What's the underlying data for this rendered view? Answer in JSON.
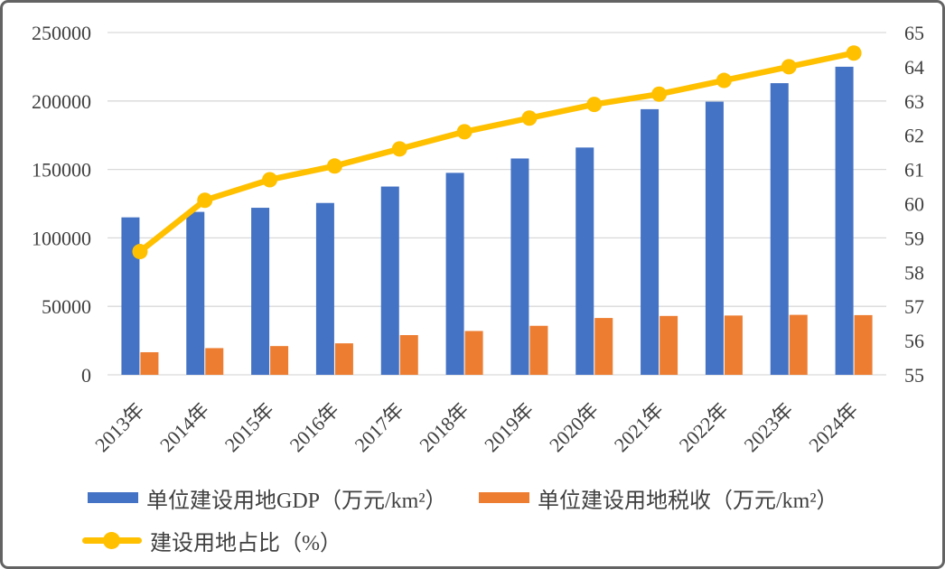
{
  "colors": {
    "bar_gdp": "#4472C4",
    "bar_tax": "#ED7D31",
    "line_ratio": "#FFC000",
    "grid": "#D9D9D9",
    "text": "#404040",
    "frame_border": "#636363",
    "background": "#FFFFFF"
  },
  "chart_data": {
    "type": "combo",
    "title": "",
    "grid": true,
    "legend_position": "bottom",
    "categories": [
      "2013年",
      "2014年",
      "2015年",
      "2016年",
      "2017年",
      "2018年",
      "2019年",
      "2020年",
      "2021年",
      "2022年",
      "2023年",
      "2024年"
    ],
    "series": [
      {
        "name": "单位建设用地GDP（万元/km²）",
        "type": "bar",
        "axis": "left",
        "color": "#4472C4",
        "values": [
          115000,
          119000,
          122000,
          125500,
          137500,
          147500,
          158000,
          166000,
          194000,
          199500,
          213000,
          225000
        ]
      },
      {
        "name": "单位建设用地税收（万元/km²）",
        "type": "bar",
        "axis": "left",
        "color": "#ED7D31",
        "values": [
          16500,
          19500,
          21000,
          23000,
          29000,
          32000,
          35800,
          41500,
          43000,
          43300,
          43800,
          43600
        ]
      },
      {
        "name": "建设用地占比（%）",
        "type": "line",
        "axis": "right",
        "color": "#FFC000",
        "values": [
          58.6,
          60.1,
          60.7,
          61.1,
          61.6,
          62.1,
          62.5,
          62.9,
          63.2,
          63.6,
          64.0,
          64.4
        ]
      }
    ],
    "left_axis": {
      "min": 0,
      "max": 250000,
      "step": 50000,
      "tick_labels": [
        "0",
        "50000",
        "100000",
        "150000",
        "200000",
        "250000"
      ]
    },
    "right_axis": {
      "min": 55,
      "max": 65,
      "step": 1,
      "tick_labels": [
        "55",
        "56",
        "57",
        "58",
        "59",
        "60",
        "61",
        "62",
        "63",
        "64",
        "65"
      ]
    }
  }
}
